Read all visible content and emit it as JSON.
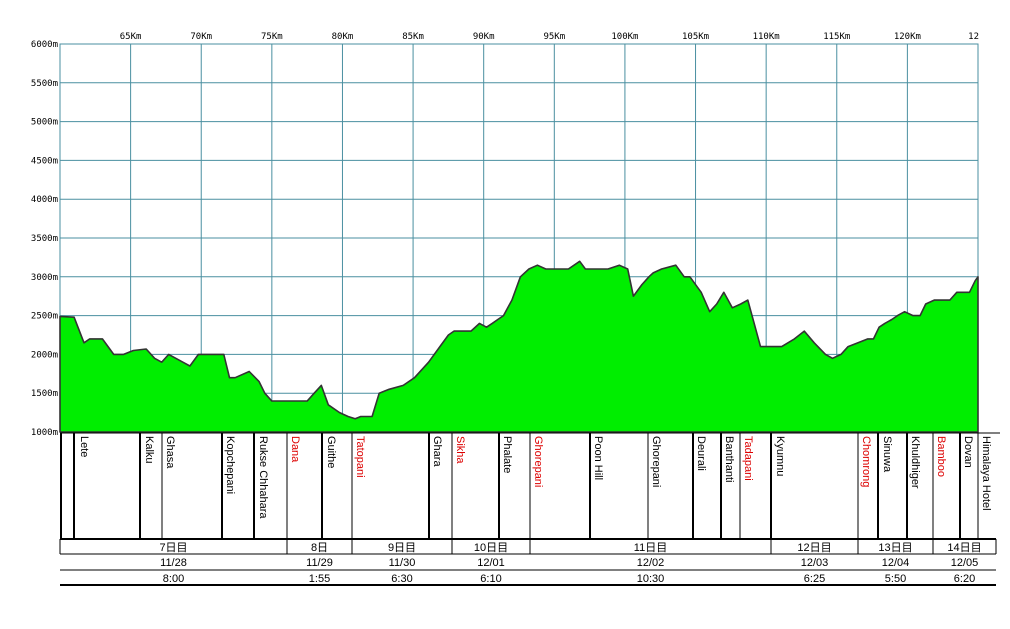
{
  "chart_data": {
    "type": "area",
    "ylim": [
      1000,
      6000
    ],
    "y_tick_labels": [
      "1000m",
      "1500m",
      "2000m",
      "2500m",
      "3000m",
      "3500m",
      "4000m",
      "4500m",
      "5000m",
      "5500m",
      "6000m"
    ],
    "x_tick_labels": [
      "65Km",
      "70Km",
      "75Km",
      "80Km",
      "85Km",
      "90Km",
      "95Km",
      "100Km",
      "105Km",
      "110Km",
      "115Km",
      "120Km",
      "12"
    ],
    "xlim": [
      60,
      125
    ],
    "grid": true,
    "colors": {
      "fill": "#00ee00",
      "stroke": "#333333",
      "grid": "#4a8fa0",
      "highlight": "#dd0000"
    },
    "series": [
      {
        "x": [
          60.0,
          61.0,
          61.7,
          62.1,
          62.6,
          63.0,
          63.8,
          64.5,
          65.2,
          66.1,
          66.7,
          67.2,
          67.7,
          68.2,
          68.7,
          69.2,
          69.8,
          70.3,
          71.3,
          71.6,
          72.0,
          72.4,
          73.4,
          74.1,
          74.5,
          75.0,
          76.1,
          77.0,
          77.5,
          78.0,
          78.5,
          79.0,
          79.8,
          80.4,
          80.9,
          81.3,
          82.1,
          82.6,
          83.3,
          84.3,
          85.1,
          86.1,
          86.9,
          87.5,
          87.9,
          88.4,
          89.1,
          89.7,
          90.2,
          90.6,
          91.0,
          91.4,
          92.0,
          92.6,
          93.2,
          93.8,
          94.4,
          94.8,
          95.2,
          96.0,
          96.8,
          97.2,
          97.8,
          98.8,
          99.6,
          100.2,
          100.6,
          101.2,
          101.7,
          102.0,
          102.6,
          103.6,
          104.2,
          104.6,
          105.4,
          106.0,
          106.5,
          107.0,
          107.6,
          108.2,
          108.7,
          109.6,
          110.3,
          111.1,
          112.0,
          112.7,
          113.4,
          114.2,
          114.7,
          115.3,
          115.8,
          116.5,
          117.2,
          117.6,
          118.0,
          118.4,
          118.9,
          119.3,
          119.8,
          120.4,
          120.9,
          121.3,
          121.9,
          122.4,
          123.0,
          123.5,
          123.9,
          124.4,
          124.8,
          125.0
        ],
        "y": [
          2490,
          2480,
          2150,
          2200,
          2200,
          2200,
          2000,
          2000,
          2050,
          2070,
          1950,
          1900,
          2000,
          1950,
          1900,
          1850,
          2000,
          2000,
          2000,
          2000,
          1700,
          1700,
          1780,
          1650,
          1500,
          1400,
          1400,
          1400,
          1400,
          1500,
          1600,
          1350,
          1250,
          1200,
          1170,
          1200,
          1200,
          1500,
          1550,
          1600,
          1700,
          1900,
          2100,
          2250,
          2300,
          2300,
          2300,
          2400,
          2350,
          2400,
          2450,
          2500,
          2700,
          3000,
          3100,
          3150,
          3100,
          3100,
          3100,
          3100,
          3200,
          3100,
          3100,
          3100,
          3150,
          3100,
          2750,
          2900,
          3000,
          3050,
          3100,
          3150,
          3000,
          3000,
          2800,
          2550,
          2650,
          2800,
          2600,
          2650,
          2700,
          2100,
          2100,
          2100,
          2200,
          2300,
          2150,
          2000,
          1950,
          2000,
          2100,
          2150,
          2200,
          2200,
          2350,
          2400,
          2450,
          2500,
          2550,
          2500,
          2500,
          2650,
          2700,
          2700,
          2700,
          2800,
          2800,
          2800,
          2950,
          3000
        ]
      }
    ]
  },
  "places": [
    {
      "name": "Lete",
      "red": false
    },
    {
      "name": "Kalku",
      "red": false
    },
    {
      "name": "Ghasa",
      "red": false
    },
    {
      "name": "Kopchepani",
      "red": false
    },
    {
      "name": "Rukse Chhahara",
      "red": false
    },
    {
      "name": "Dana",
      "red": true
    },
    {
      "name": "Guithe",
      "red": false
    },
    {
      "name": "Tatopani",
      "red": true
    },
    {
      "name": "Ghara",
      "red": false
    },
    {
      "name": "Sikha",
      "red": true
    },
    {
      "name": "Phalate",
      "red": false
    },
    {
      "name": "Ghorepani",
      "red": true
    },
    {
      "name": "Poon Hill",
      "red": false
    },
    {
      "name": "Ghorepani",
      "red": false
    },
    {
      "name": "Deurali",
      "red": false
    },
    {
      "name": "Banthanti",
      "red": false
    },
    {
      "name": "Tadapani",
      "red": true
    },
    {
      "name": "Kyumnu",
      "red": false
    },
    {
      "name": "Chomrong",
      "red": true
    },
    {
      "name": "Sinuwa",
      "red": false
    },
    {
      "name": "Khuldhiger",
      "red": false
    },
    {
      "name": "Bamboo",
      "red": true
    },
    {
      "name": "Dovan",
      "red": false
    },
    {
      "name": "Himalaya Hotel",
      "red": false
    }
  ],
  "days": [
    {
      "day": "7日目",
      "date": "11/28",
      "time": "8:00"
    },
    {
      "day": "8日",
      "date": "11/29",
      "time": "1:55"
    },
    {
      "day": "9日目",
      "date": "11/30",
      "time": "6:30"
    },
    {
      "day": "10日目",
      "date": "12/01",
      "time": "6:10"
    },
    {
      "day": "11日目",
      "date": "12/02",
      "time": "10:30"
    },
    {
      "day": "12日目",
      "date": "12/03",
      "time": "6:25"
    },
    {
      "day": "13日目",
      "date": "12/04",
      "time": "5:50"
    },
    {
      "day": "14日目",
      "date": "12/05",
      "time": "6:20"
    }
  ]
}
